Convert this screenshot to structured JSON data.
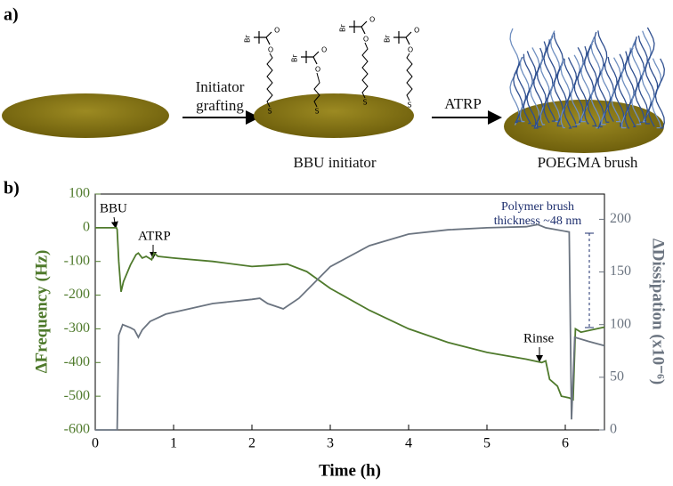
{
  "panel_a": {
    "label": "a)",
    "step1_line1": "Initiator",
    "step1_line2": "grafting",
    "initiator_caption": "BBU initiator",
    "step2": "ATRP",
    "brush_caption": "POEGMA brush",
    "atoms": {
      "br": "Br",
      "o": "O",
      "s": "S"
    }
  },
  "chart_data": {
    "type": "line",
    "label": "b)",
    "xlabel": "Time (h)",
    "ylabel": "ΔFrequency (Hz)",
    "y2label": "ΔDissipation (x10⁻⁶)",
    "xlim": [
      0,
      6.5
    ],
    "xticks": [
      0,
      1,
      2,
      3,
      4,
      5,
      6
    ],
    "ylim": [
      -600,
      100
    ],
    "yticks": [
      -600,
      -500,
      -400,
      -300,
      -200,
      -100,
      0,
      100
    ],
    "y2lim": [
      0,
      224
    ],
    "y2ticks": [
      0,
      50,
      100,
      150,
      200
    ],
    "annotations": {
      "bbu": "BBU",
      "atrp": "ATRP",
      "rinse": "Rinse",
      "brush_line1": "Polymer brush",
      "brush_line2": "thickness ~48 nm"
    },
    "series": [
      {
        "color": "#4f7a2c",
        "axis": "y",
        "x": [
          0,
          0.27,
          0.28,
          0.3,
          0.33,
          0.36,
          0.45,
          0.52,
          0.55,
          0.6,
          0.65,
          0.72,
          0.75,
          0.8,
          1,
          1.5,
          2,
          2.2,
          2.45,
          2.7,
          3,
          3.5,
          4,
          4.5,
          5,
          5.5,
          5.7,
          5.75,
          5.8,
          5.9,
          5.95,
          6.05,
          6.1,
          6.13,
          6.2,
          6.5
        ],
        "values": [
          0,
          0,
          -5,
          -100,
          -190,
          -160,
          -110,
          -80,
          -75,
          -90,
          -85,
          -95,
          -75,
          -85,
          -90,
          -100,
          -115,
          -112,
          -108,
          -130,
          -180,
          -245,
          -300,
          -340,
          -370,
          -390,
          -400,
          -395,
          -450,
          -470,
          -500,
          -505,
          -510,
          -300,
          -310,
          -295
        ]
      },
      {
        "color": "#6b7480",
        "axis": "y2",
        "x": [
          0,
          0.28,
          0.3,
          0.35,
          0.45,
          0.5,
          0.55,
          0.6,
          0.7,
          0.9,
          1.5,
          2,
          2.1,
          2.2,
          2.4,
          2.6,
          3,
          3.5,
          4,
          4.5,
          5,
          5.5,
          5.65,
          5.75,
          6.05,
          6.08,
          6.12,
          6.3,
          6.5
        ],
        "values": [
          0,
          0,
          90,
          100,
          97,
          95,
          88,
          95,
          103,
          110,
          120,
          124,
          125,
          120,
          115,
          125,
          155,
          175,
          186,
          190,
          192,
          193,
          195,
          192,
          188,
          10,
          88,
          84,
          80
        ]
      }
    ]
  }
}
